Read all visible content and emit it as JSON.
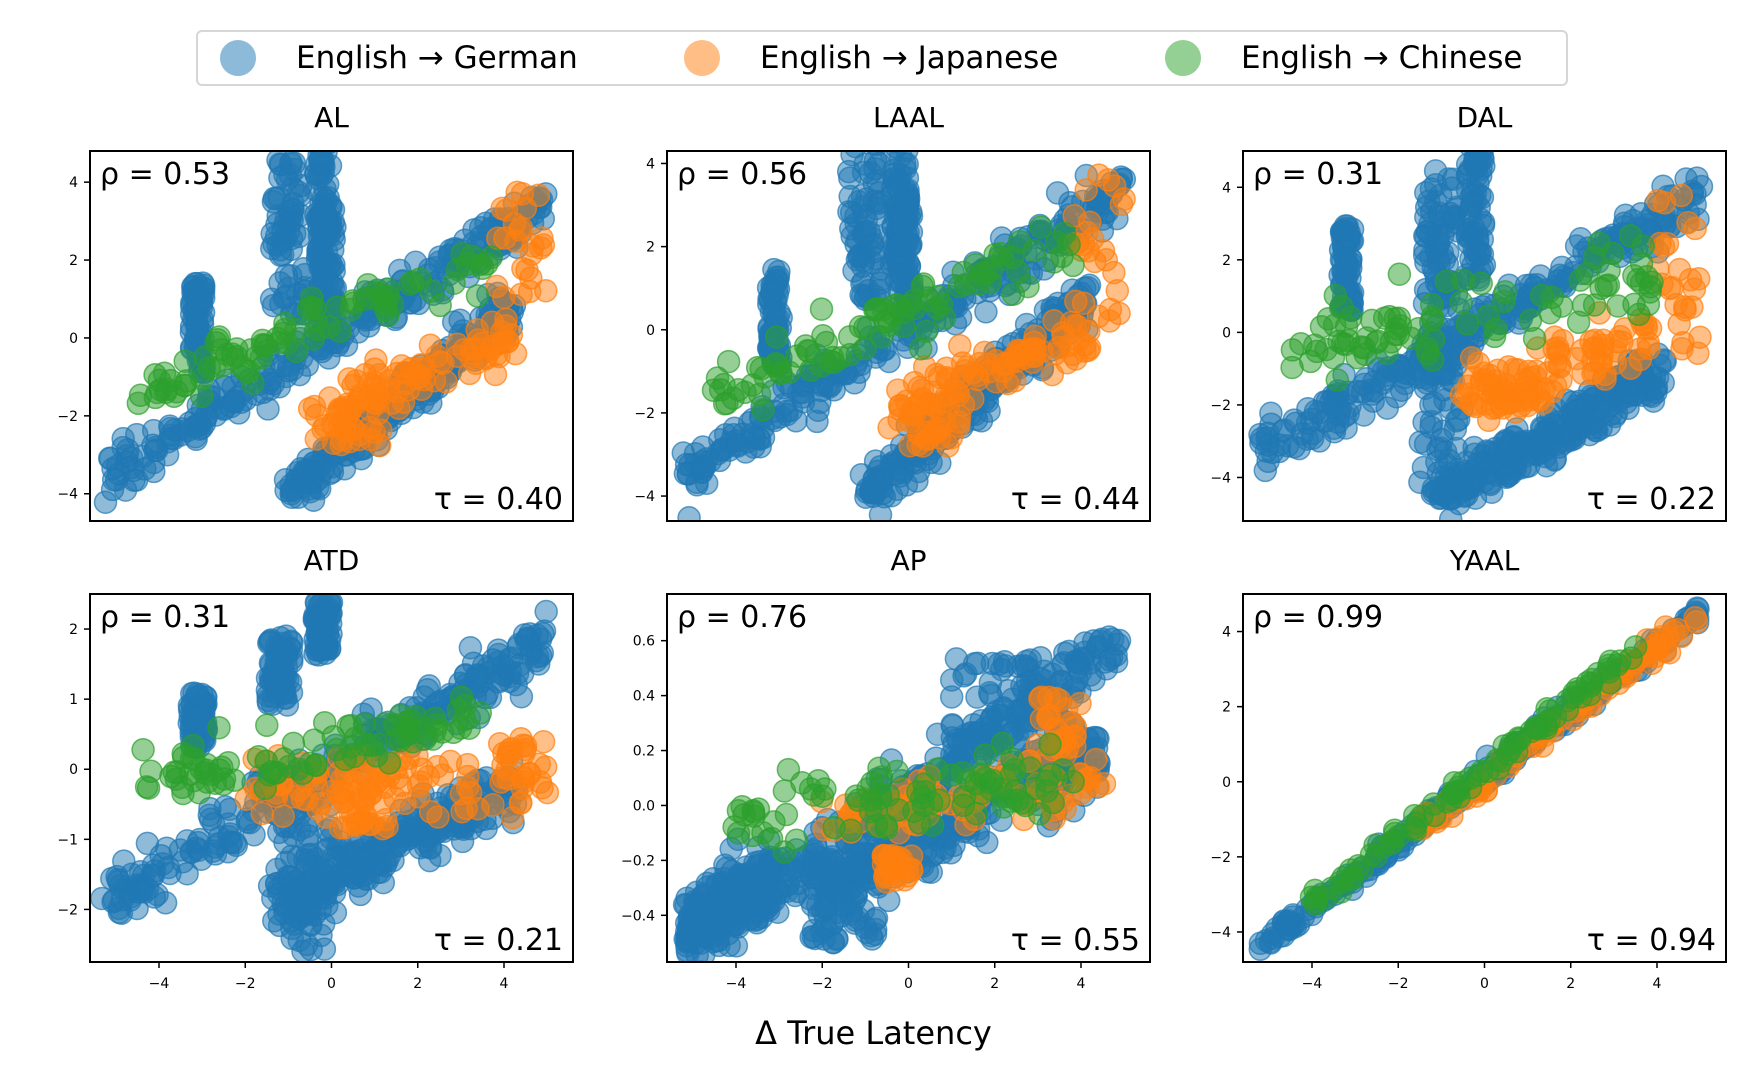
{
  "legend": {
    "items": [
      {
        "label": "English → German",
        "color": "#1f77b4"
      },
      {
        "label": "English → Japanese",
        "color": "#ff7f0e"
      },
      {
        "label": "English → Chinese",
        "color": "#2ca02c"
      }
    ]
  },
  "xlabel": "Δ True Latency",
  "chart_data": [
    {
      "type": "scatter",
      "title": "AL",
      "xlim": [
        -5.6,
        5.6
      ],
      "ylim": [
        -4.7,
        4.8
      ],
      "yticks": [
        -4,
        -2,
        0,
        2,
        4
      ],
      "xticks": [],
      "xticklabels": [],
      "rho_label": "ρ = 0.53",
      "tau_label": "τ = 0.40",
      "grid": false,
      "spread": [
        0.3,
        0.35,
        0.35,
        0.25
      ],
      "series": [
        {
          "name": "English → German",
          "segments": [
            [
              -5.2,
              -3.5,
              5.0,
              3.4
            ],
            [
              -1.0,
              -4.0,
              4.2,
              0.8
            ]
          ],
          "clusters": [
            [
              -3.1,
              0.3,
              0.15,
              1.2
            ],
            [
              -1.0,
              2.6,
              0.4,
              2.0
            ],
            [
              -0.2,
              3.5,
              0.2,
              2.0
            ],
            [
              -0.1,
              1.8,
              0.2,
              1.5
            ]
          ]
        },
        {
          "name": "English → Japanese",
          "segments": [
            [
              -0.5,
              -2.0,
              4.2,
              0.0
            ]
          ],
          "clusters": [
            [
              4.4,
              2.0,
              0.6,
              1.8
            ],
            [
              0.6,
              -2.3,
              0.6,
              0.5
            ]
          ]
        },
        {
          "name": "English → Chinese",
          "segments": [
            [
              -4.5,
              -1.5,
              3.8,
              2.1
            ]
          ],
          "clusters": []
        }
      ]
    },
    {
      "type": "scatter",
      "title": "LAAL",
      "xlim": [
        -5.6,
        5.6
      ],
      "ylim": [
        -4.6,
        4.3
      ],
      "yticks": [
        -4,
        -2,
        0,
        2,
        4
      ],
      "xticks": [],
      "xticklabels": [],
      "rho_label": "ρ = 0.56",
      "tau_label": "τ = 0.44",
      "grid": false,
      "spread": [
        0.3,
        0.35,
        0.35,
        0.25
      ],
      "series": [
        {
          "name": "English → German",
          "segments": [
            [
              -5.2,
              -3.5,
              5.0,
              3.4
            ],
            [
              -1.0,
              -4.0,
              4.2,
              0.8
            ]
          ],
          "clusters": [
            [
              -3.1,
              0.3,
              0.15,
              1.2
            ],
            [
              -1.0,
              2.6,
              0.4,
              2.0
            ],
            [
              -0.2,
              3.5,
              0.2,
              2.0
            ],
            [
              -0.1,
              1.8,
              0.2,
              1.5
            ]
          ]
        },
        {
          "name": "English → Japanese",
          "segments": [
            [
              -0.5,
              -2.0,
              4.2,
              0.0
            ]
          ],
          "clusters": [
            [
              4.4,
              2.0,
              0.6,
              1.8
            ],
            [
              0.6,
              -2.3,
              0.6,
              0.5
            ]
          ]
        },
        {
          "name": "English → Chinese",
          "segments": [
            [
              -4.5,
              -1.5,
              3.8,
              2.1
            ]
          ],
          "clusters": []
        }
      ]
    },
    {
      "type": "scatter",
      "title": "DAL",
      "xlim": [
        -5.6,
        5.6
      ],
      "ylim": [
        -5.2,
        5.0
      ],
      "yticks": [
        -4,
        -2,
        0,
        2,
        4
      ],
      "xticks": [],
      "xticklabels": [],
      "rho_label": "ρ = 0.31",
      "tau_label": "τ = 0.22",
      "grid": false,
      "spread": [
        0.35,
        0.4,
        0.5,
        0.3
      ],
      "series": [
        {
          "name": "English → German",
          "segments": [
            [
              -5.2,
              -3.4,
              5.0,
              3.8
            ],
            [
              -1.0,
              -4.5,
              4.2,
              -1.0
            ]
          ],
          "clusters": [
            [
              -3.2,
              1.8,
              0.15,
              1.2
            ],
            [
              -1.0,
              2.5,
              0.4,
              2.0
            ],
            [
              -0.2,
              3.4,
              0.2,
              2.0
            ],
            [
              -1.0,
              -2.0,
              0.5,
              2.5
            ]
          ]
        },
        {
          "name": "English → Japanese",
          "segments": [
            [
              -0.5,
              -1.7,
              4.0,
              0.0
            ]
          ],
          "clusters": [
            [
              4.5,
              1.8,
              0.5,
              2.5
            ],
            [
              0.5,
              -1.8,
              0.6,
              0.6
            ]
          ]
        },
        {
          "name": "English → Chinese",
          "segments": [
            [
              -4.5,
              -0.5,
              4.0,
              1.5
            ]
          ],
          "clusters": []
        }
      ]
    },
    {
      "type": "scatter",
      "title": "ATD",
      "xlim": [
        -5.6,
        5.6
      ],
      "ylim": [
        -2.75,
        2.5
      ],
      "yticks": [
        -2,
        -1,
        0,
        1,
        2
      ],
      "xticks": [
        -4,
        -2,
        0,
        2,
        4
      ],
      "xticklabels": [
        "−4",
        "−2",
        "0",
        "2",
        "4"
      ],
      "rho_label": "ρ = 0.31",
      "tau_label": "τ = 0.21",
      "grid": false,
      "spread": [
        0.2,
        0.25,
        0.2,
        0.15
      ],
      "series": [
        {
          "name": "English → German",
          "segments": [
            [
              -5.2,
              -1.9,
              5.0,
              1.8
            ],
            [
              -1.5,
              -2.0,
              4.3,
              -0.2
            ]
          ],
          "clusters": [
            [
              -0.5,
              -1.3,
              0.6,
              1.3
            ],
            [
              -1.2,
              1.4,
              0.3,
              0.5
            ],
            [
              -0.2,
              2.0,
              0.2,
              0.4
            ],
            [
              -3.1,
              0.7,
              0.2,
              0.4
            ]
          ]
        },
        {
          "name": "English → Japanese",
          "segments": [
            [
              -2.0,
              -0.3,
              4.5,
              -0.1
            ]
          ],
          "clusters": [
            [
              0.7,
              -0.6,
              0.6,
              0.3
            ],
            [
              4.5,
              0.0,
              0.6,
              0.4
            ]
          ]
        },
        {
          "name": "English → Chinese",
          "segments": [
            [
              -4.5,
              -0.2,
              3.5,
              0.7
            ]
          ],
          "clusters": []
        }
      ]
    },
    {
      "type": "scatter",
      "title": "AP",
      "xlim": [
        -5.6,
        5.6
      ],
      "ylim": [
        -0.57,
        0.77
      ],
      "yticks": [
        -0.4,
        -0.2,
        0.0,
        0.2,
        0.4,
        0.6
      ],
      "xticks": [
        -4,
        -2,
        0,
        2,
        4
      ],
      "xticklabels": [
        "−4",
        "−2",
        "0",
        "2",
        "4"
      ],
      "rho_label": "ρ = 0.76",
      "tau_label": "τ = 0.55",
      "grid": false,
      "spread": [
        0.06,
        0.06,
        0.06,
        0.04
      ],
      "series": [
        {
          "name": "English → German",
          "segments": [
            [
              -4.0,
              -0.4,
              5.0,
              0.6
            ],
            [
              -2.0,
              -0.3,
              4.5,
              0.2
            ],
            [
              -5.2,
              -0.45,
              -3.0,
              -0.25
            ]
          ],
          "clusters": [
            [
              -1.5,
              -0.35,
              0.8,
              0.15
            ],
            [
              2.5,
              0.35,
              1.5,
              0.2
            ]
          ]
        },
        {
          "name": "English → Japanese",
          "segments": [
            [
              -2.0,
              -0.05,
              4.5,
              0.1
            ]
          ],
          "clusters": [
            [
              -0.3,
              -0.23,
              0.4,
              0.05
            ],
            [
              3.5,
              0.3,
              0.5,
              0.1
            ]
          ]
        },
        {
          "name": "English → Chinese",
          "segments": [
            [
              -4.0,
              -0.05,
              4.0,
              0.1
            ]
          ],
          "clusters": []
        }
      ]
    },
    {
      "type": "scatter",
      "title": "YAAL",
      "xlim": [
        -5.6,
        5.6
      ],
      "ylim": [
        -4.8,
        5.0
      ],
      "yticks": [
        -4,
        -2,
        0,
        2,
        4
      ],
      "xticks": [
        -4,
        -2,
        0,
        2,
        4
      ],
      "xticklabels": [
        "−4",
        "−2",
        "0",
        "2",
        "4"
      ],
      "rho_label": "ρ = 0.99",
      "tau_label": "τ = 0.94",
      "grid": false,
      "spread": [
        0.12,
        0.15,
        0.15,
        0.1
      ],
      "series": [
        {
          "name": "English → German",
          "segments": [
            [
              -5.2,
              -4.4,
              5.0,
              4.5
            ]
          ],
          "clusters": []
        },
        {
          "name": "English → Japanese",
          "segments": [
            [
              -1.5,
              -1.3,
              5.0,
              4.5
            ]
          ],
          "clusters": []
        },
        {
          "name": "English → Chinese",
          "segments": [
            [
              -4.0,
              -3.3,
              3.5,
              3.5
            ]
          ],
          "clusters": []
        }
      ]
    }
  ]
}
